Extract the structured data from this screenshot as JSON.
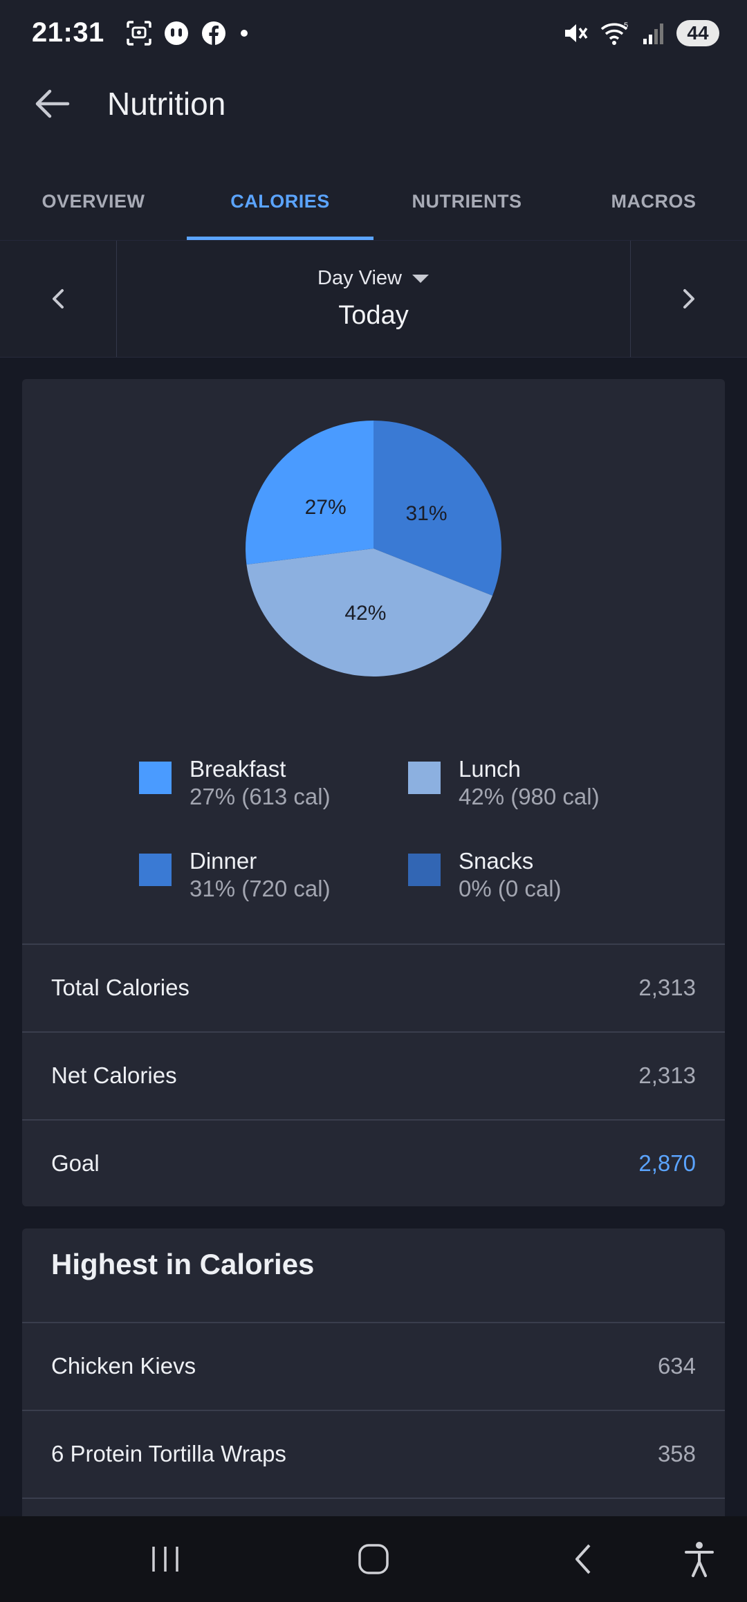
{
  "status_bar": {
    "time": "21:31",
    "battery": "44",
    "icons": [
      "screenshot-icon",
      "notification-app-icon",
      "facebook-icon",
      "dot-icon",
      "mute-icon",
      "wifi-icon",
      "signal-icon"
    ]
  },
  "app_bar": {
    "title": "Nutrition"
  },
  "tabs": [
    {
      "label": "OVERVIEW",
      "active": false
    },
    {
      "label": "CALORIES",
      "active": true
    },
    {
      "label": "NUTRIENTS",
      "active": false
    },
    {
      "label": "MACROS",
      "active": false
    }
  ],
  "day_nav": {
    "mode": "Day View",
    "date": "Today"
  },
  "chart_data": {
    "type": "pie",
    "slices": [
      {
        "name": "Breakfast",
        "percent": 27,
        "calories": 613,
        "color": "#4a9bff",
        "label": "27%"
      },
      {
        "name": "Lunch",
        "percent": 42,
        "calories": 980,
        "color": "#8cb0e0",
        "label": "42%"
      },
      {
        "name": "Dinner",
        "percent": 31,
        "calories": 720,
        "color": "#3a7ad4",
        "label": "31%"
      },
      {
        "name": "Snacks",
        "percent": 0,
        "calories": 0,
        "color": "#3266b4",
        "label": ""
      }
    ]
  },
  "legend": [
    {
      "name": "Breakfast",
      "value": "27% (613 cal)",
      "color": "#4a9bff"
    },
    {
      "name": "Lunch",
      "value": "42% (980 cal)",
      "color": "#8cb0e0"
    },
    {
      "name": "Dinner",
      "value": "31% (720 cal)",
      "color": "#3a7ad4"
    },
    {
      "name": "Snacks",
      "value": "0% (0 cal)",
      "color": "#3266b4"
    }
  ],
  "summary": {
    "total_label": "Total Calories",
    "total_value": "2,313",
    "net_label": "Net Calories",
    "net_value": "2,313",
    "goal_label": "Goal",
    "goal_value": "2,870"
  },
  "highest": {
    "heading": "Highest in Calories",
    "items": [
      {
        "name": "Chicken Kievs",
        "value": "634"
      },
      {
        "name": "6 Protein Tortilla Wraps",
        "value": "358"
      }
    ]
  }
}
